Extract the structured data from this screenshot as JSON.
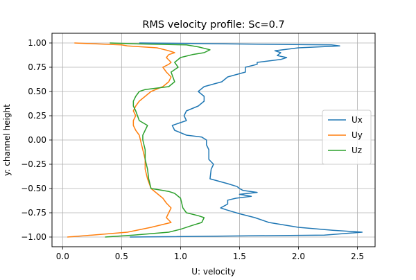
{
  "chart_data": {
    "type": "line",
    "title": "RMS velocity profile: Sc=0.7",
    "xlabel": "U: velocity",
    "ylabel": "y: channel height",
    "xlim": [
      -0.09,
      2.65
    ],
    "ylim": [
      -1.1,
      1.1
    ],
    "xticks": [
      0.0,
      0.5,
      1.0,
      1.5,
      2.0,
      2.5
    ],
    "xtick_labels": [
      "0.0",
      "0.5",
      "1.0",
      "1.5",
      "2.0",
      "2.5"
    ],
    "yticks": [
      -1.0,
      -0.75,
      -0.5,
      -0.25,
      0.0,
      0.25,
      0.5,
      0.75,
      1.0
    ],
    "ytick_labels": [
      "−1.00",
      "−0.75",
      "−0.50",
      "−0.25",
      "0.00",
      "0.25",
      "0.50",
      "0.75",
      "1.00"
    ],
    "grid": true,
    "legend_position": "center-right",
    "series": [
      {
        "name": "Ux",
        "color": "#1f77b4",
        "x": [
          0.57,
          2.22,
          2.54,
          2.29,
          2.0,
          1.75,
          1.63,
          1.5,
          1.39,
          1.34,
          1.37,
          1.4,
          1.4,
          1.47,
          1.6,
          1.5,
          1.65,
          1.53,
          1.5,
          1.48,
          1.4,
          1.25,
          1.26,
          1.28,
          1.24,
          1.24,
          1.22,
          1.22,
          1.18,
          1.05,
          0.95,
          0.93,
          1.05,
          1.03,
          1.05,
          1.15,
          1.2,
          1.2,
          1.15,
          1.2,
          1.35,
          1.4,
          1.55,
          1.55,
          1.65,
          1.65,
          1.85,
          1.9,
          1.82,
          1.85,
          1.8,
          2.0,
          2.35,
          2.28,
          0.65
        ],
        "y": [
          -1.0,
          -0.98,
          -0.95,
          -0.93,
          -0.9,
          -0.85,
          -0.8,
          -0.76,
          -0.72,
          -0.7,
          -0.68,
          -0.66,
          -0.62,
          -0.6,
          -0.58,
          -0.56,
          -0.54,
          -0.52,
          -0.5,
          -0.48,
          -0.45,
          -0.4,
          -0.3,
          -0.25,
          -0.2,
          -0.1,
          -0.05,
          0.0,
          0.03,
          0.05,
          0.1,
          0.15,
          0.2,
          0.25,
          0.3,
          0.35,
          0.4,
          0.45,
          0.5,
          0.55,
          0.6,
          0.65,
          0.7,
          0.75,
          0.78,
          0.8,
          0.83,
          0.85,
          0.87,
          0.9,
          0.92,
          0.95,
          0.97,
          0.98,
          1.0
        ]
      },
      {
        "name": "Uy",
        "color": "#ff7f0e",
        "x": [
          0.04,
          0.25,
          0.55,
          0.75,
          0.92,
          0.88,
          0.9,
          0.92,
          0.88,
          0.85,
          0.8,
          0.75,
          0.72,
          0.7,
          0.7,
          0.68,
          0.66,
          0.65,
          0.62,
          0.6,
          0.6,
          0.62,
          0.6,
          0.62,
          0.65,
          0.7,
          0.75,
          0.85,
          0.9,
          0.92,
          0.88,
          0.85,
          0.9,
          0.92,
          0.88,
          0.9,
          0.95,
          0.9,
          0.8,
          0.55,
          0.5,
          0.3,
          0.1
        ],
        "y": [
          -1.0,
          -0.98,
          -0.95,
          -0.9,
          -0.85,
          -0.8,
          -0.75,
          -0.7,
          -0.65,
          -0.6,
          -0.55,
          -0.5,
          -0.4,
          -0.3,
          -0.2,
          -0.1,
          0.0,
          0.05,
          0.1,
          0.15,
          0.2,
          0.25,
          0.3,
          0.35,
          0.4,
          0.45,
          0.5,
          0.55,
          0.6,
          0.65,
          0.7,
          0.75,
          0.78,
          0.8,
          0.85,
          0.88,
          0.9,
          0.92,
          0.95,
          0.97,
          0.98,
          0.99,
          1.0
        ]
      },
      {
        "name": "Uz",
        "color": "#2ca02c",
        "x": [
          0.36,
          0.6,
          0.9,
          1.0,
          1.1,
          1.18,
          1.2,
          1.15,
          1.05,
          1.02,
          1.0,
          0.95,
          0.9,
          0.85,
          0.8,
          0.75,
          0.73,
          0.72,
          0.7,
          0.7,
          0.68,
          0.68,
          0.7,
          0.72,
          0.65,
          0.62,
          0.6,
          0.6,
          0.62,
          0.65,
          0.7,
          0.9,
          0.95,
          0.92,
          0.98,
          0.95,
          1.0,
          1.1,
          1.2,
          1.25,
          1.15,
          1.05,
          0.65,
          0.4
        ],
        "y": [
          -1.0,
          -0.98,
          -0.95,
          -0.92,
          -0.88,
          -0.85,
          -0.8,
          -0.78,
          -0.75,
          -0.7,
          -0.6,
          -0.55,
          -0.53,
          -0.52,
          -0.51,
          -0.5,
          -0.4,
          -0.3,
          -0.2,
          -0.1,
          0.0,
          0.05,
          0.1,
          0.15,
          0.2,
          0.3,
          0.35,
          0.4,
          0.45,
          0.5,
          0.52,
          0.55,
          0.6,
          0.7,
          0.75,
          0.8,
          0.85,
          0.88,
          0.9,
          0.93,
          0.96,
          0.98,
          0.99,
          1.0
        ]
      }
    ]
  }
}
